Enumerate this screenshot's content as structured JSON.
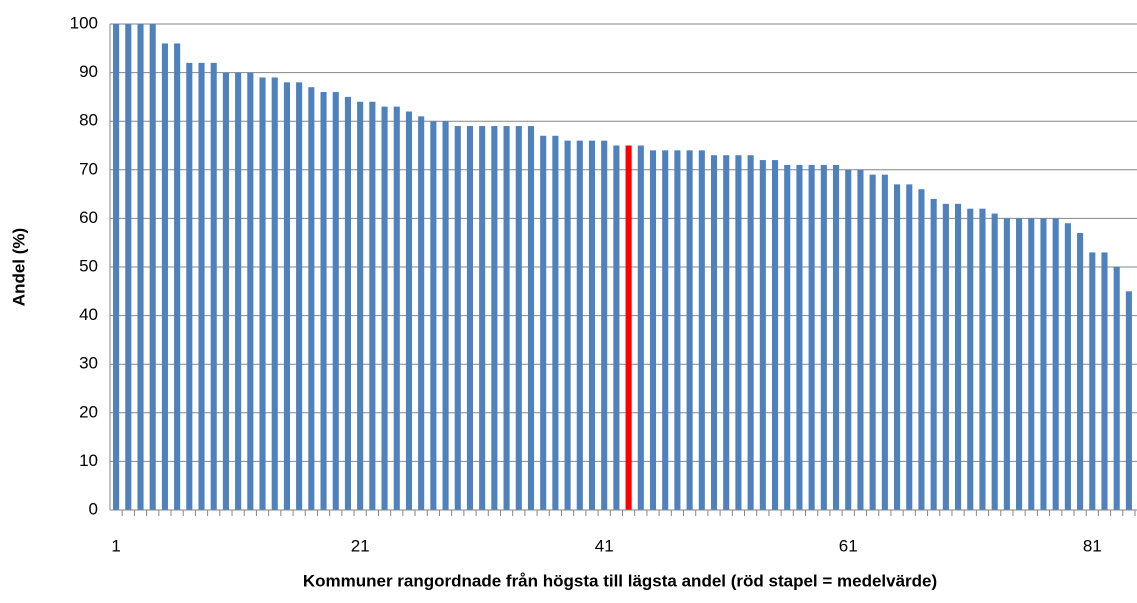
{
  "chart_data": {
    "type": "bar",
    "ylabel": "Andel (%)",
    "xlabel": "Kommuner rangordnade från högsta till lägsta andel (röd stapel = medelvärde)",
    "categories": [
      1,
      null,
      null,
      null,
      null,
      null,
      null,
      null,
      null,
      null,
      null,
      null,
      null,
      null,
      null,
      null,
      null,
      null,
      null,
      null,
      21,
      null,
      null,
      null,
      null,
      null,
      null,
      null,
      null,
      null,
      null,
      null,
      null,
      null,
      null,
      null,
      null,
      null,
      null,
      null,
      41,
      null,
      null,
      null,
      null,
      null,
      null,
      null,
      null,
      null,
      null,
      null,
      null,
      null,
      null,
      null,
      null,
      null,
      null,
      null,
      61,
      null,
      null,
      null,
      null,
      null,
      null,
      null,
      null,
      null,
      null,
      null,
      null,
      null,
      null,
      null,
      null,
      null,
      null,
      null,
      81,
      null,
      null,
      null
    ],
    "values": [
      100,
      100,
      100,
      100,
      96,
      96,
      92,
      92,
      92,
      90,
      90,
      90,
      89,
      89,
      88,
      88,
      87,
      86,
      86,
      85,
      84,
      84,
      83,
      83,
      82,
      81,
      80,
      80,
      79,
      79,
      79,
      79,
      79,
      79,
      79,
      77,
      77,
      76,
      76,
      76,
      76,
      75,
      75,
      75,
      74,
      74,
      74,
      74,
      74,
      73,
      73,
      73,
      73,
      72,
      72,
      71,
      71,
      71,
      71,
      71,
      70,
      70,
      69,
      69,
      67,
      67,
      66,
      64,
      63,
      63,
      62,
      62,
      61,
      60,
      60,
      60,
      60,
      60,
      59,
      57,
      53,
      53,
      50,
      45
    ],
    "colors": [
      "#4f81bd",
      "#4f81bd",
      "#4f81bd",
      "#4f81bd",
      "#4f81bd",
      "#4f81bd",
      "#4f81bd",
      "#4f81bd",
      "#4f81bd",
      "#4f81bd",
      "#4f81bd",
      "#4f81bd",
      "#4f81bd",
      "#4f81bd",
      "#4f81bd",
      "#4f81bd",
      "#4f81bd",
      "#4f81bd",
      "#4f81bd",
      "#4f81bd",
      "#4f81bd",
      "#4f81bd",
      "#4f81bd",
      "#4f81bd",
      "#4f81bd",
      "#4f81bd",
      "#4f81bd",
      "#4f81bd",
      "#4f81bd",
      "#4f81bd",
      "#4f81bd",
      "#4f81bd",
      "#4f81bd",
      "#4f81bd",
      "#4f81bd",
      "#4f81bd",
      "#4f81bd",
      "#4f81bd",
      "#4f81bd",
      "#4f81bd",
      "#4f81bd",
      "#4f81bd",
      "#ff0000",
      "#4f81bd",
      "#4f81bd",
      "#4f81bd",
      "#4f81bd",
      "#4f81bd",
      "#4f81bd",
      "#4f81bd",
      "#4f81bd",
      "#4f81bd",
      "#4f81bd",
      "#4f81bd",
      "#4f81bd",
      "#4f81bd",
      "#4f81bd",
      "#4f81bd",
      "#4f81bd",
      "#4f81bd",
      "#4f81bd",
      "#4f81bd",
      "#4f81bd",
      "#4f81bd",
      "#4f81bd",
      "#4f81bd",
      "#4f81bd",
      "#4f81bd",
      "#4f81bd",
      "#4f81bd",
      "#4f81bd",
      "#4f81bd",
      "#4f81bd",
      "#4f81bd",
      "#4f81bd",
      "#4f81bd",
      "#4f81bd",
      "#4f81bd",
      "#4f81bd",
      "#4f81bd",
      "#4f81bd",
      "#4f81bd",
      "#4f81bd",
      "#4f81bd"
    ],
    "ylim": [
      0,
      100
    ],
    "yticks": [
      0,
      10,
      20,
      30,
      40,
      50,
      60,
      70,
      80,
      90,
      100
    ],
    "grid": true
  }
}
